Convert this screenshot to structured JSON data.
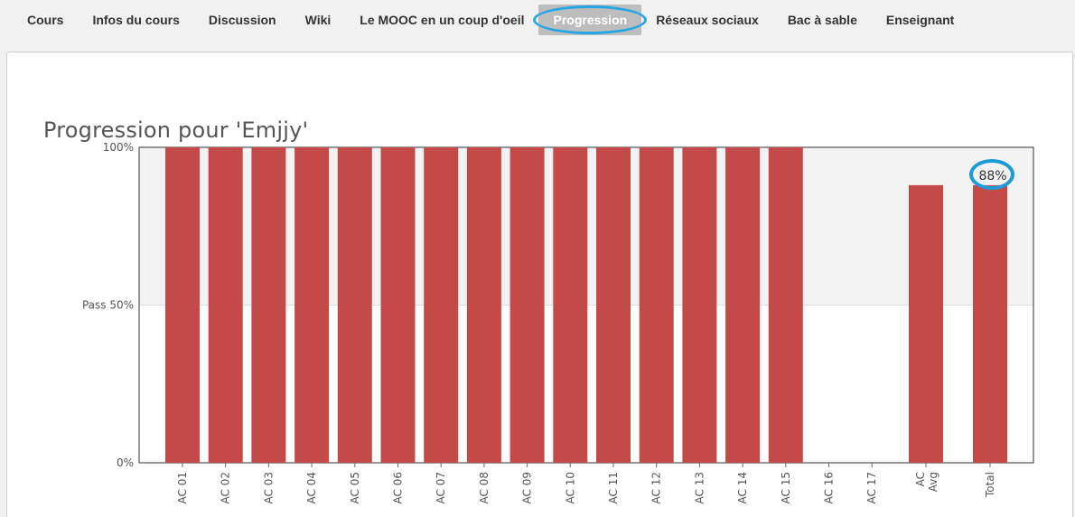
{
  "nav": {
    "tabs": [
      {
        "label": "Cours",
        "active": false
      },
      {
        "label": "Infos du cours",
        "active": false
      },
      {
        "label": "Discussion",
        "active": false
      },
      {
        "label": "Wiki",
        "active": false
      },
      {
        "label": "Le MOOC en un coup d'oeil",
        "active": false
      },
      {
        "label": "Progression",
        "active": true
      },
      {
        "label": "Réseaux sociaux",
        "active": false
      },
      {
        "label": "Bac à sable",
        "active": false
      },
      {
        "label": "Enseignant",
        "active": false
      }
    ]
  },
  "progress": {
    "title": "Progression pour 'Emjjy'"
  },
  "colors": {
    "bar": "#c44a4a",
    "pass_band": "#f3f3f3",
    "active_tab": "#bdbdbd",
    "highlight": "#27a6e6"
  },
  "chart_data": {
    "type": "bar",
    "title": "Progression pour 'Emjjy'",
    "categories": [
      "AC 01",
      "AC 02",
      "AC 03",
      "AC 04",
      "AC 05",
      "AC 06",
      "AC 07",
      "AC 08",
      "AC 09",
      "AC 10",
      "AC 11",
      "AC 12",
      "AC 13",
      "AC 14",
      "AC 15",
      "AC 16",
      "AC 17",
      "AC Avg",
      "Total"
    ],
    "values": [
      100,
      100,
      100,
      100,
      100,
      100,
      100,
      100,
      100,
      100,
      100,
      100,
      100,
      100,
      100,
      0,
      0,
      88,
      88
    ],
    "y_ticks": [
      {
        "value": 100,
        "label": "100%"
      },
      {
        "value": 50,
        "label": "Pass 50%"
      },
      {
        "value": 0,
        "label": "0%"
      }
    ],
    "ylim": [
      0,
      100
    ],
    "pass_threshold": 50,
    "total_label": "88%"
  }
}
